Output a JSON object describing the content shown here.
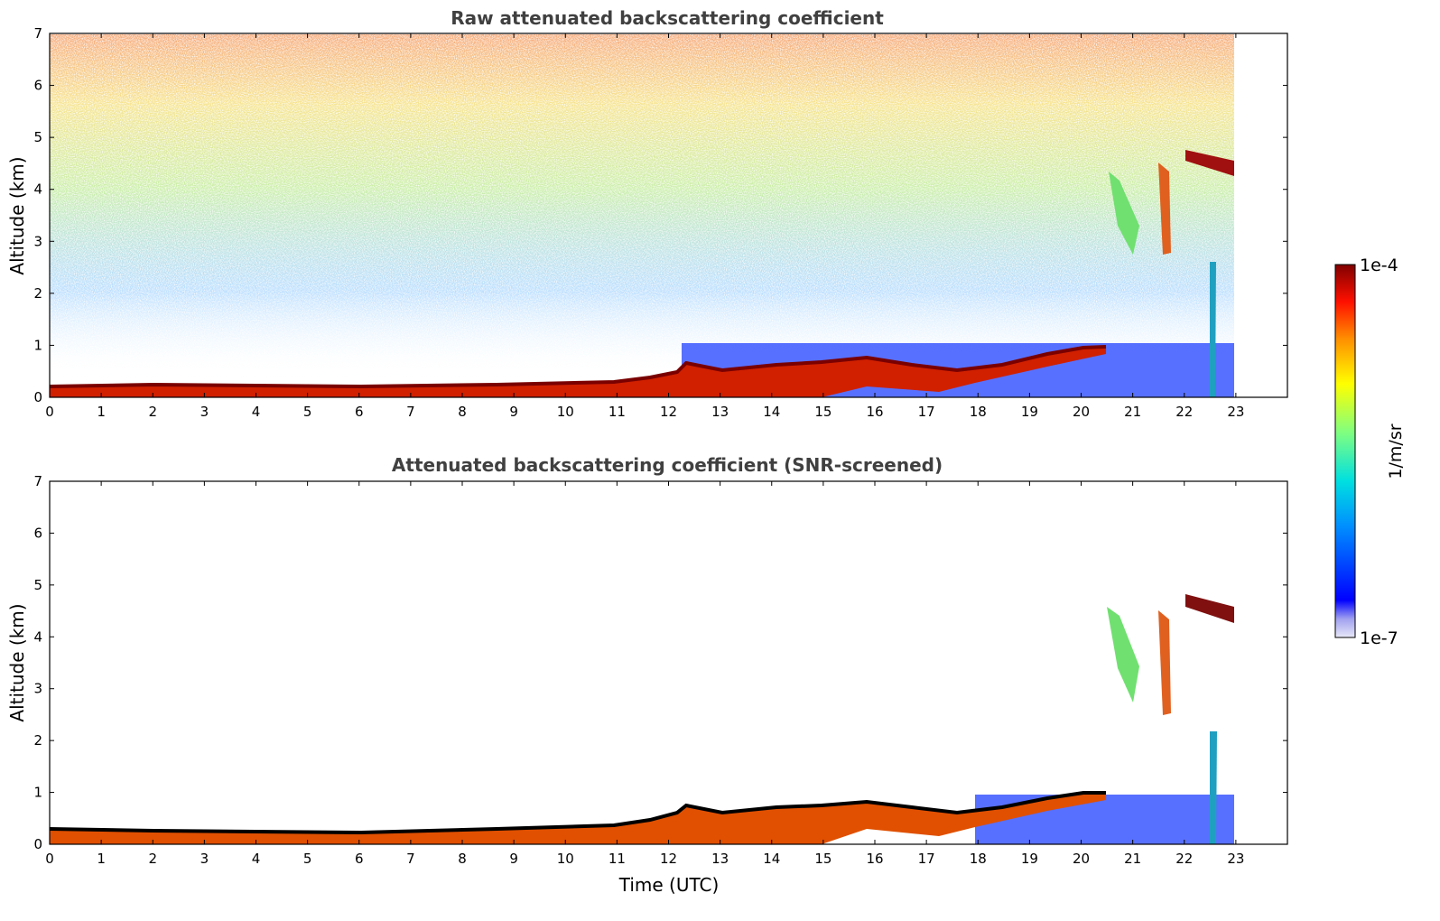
{
  "chart_data": [
    {
      "type": "heatmap",
      "title": "Raw attenuated backscattering coefficient",
      "xlabel": "",
      "ylabel": "Altitude (km)",
      "xlim": [
        0,
        24
      ],
      "ylim": [
        0,
        7
      ],
      "xticks": [
        "0",
        "1",
        "2",
        "3",
        "4",
        "5",
        "6",
        "7",
        "8",
        "9",
        "10",
        "11",
        "12",
        "13",
        "14",
        "15",
        "16",
        "17",
        "18",
        "19",
        "20",
        "21",
        "22",
        "23"
      ],
      "yticks": [
        "0",
        "1",
        "2",
        "3",
        "4",
        "5",
        "6",
        "7"
      ],
      "data_extent_hours": [
        0,
        23
      ],
      "colorbar": {
        "min": "1e-7",
        "max": "1e-4",
        "label": "1/m/sr",
        "scale": "log"
      },
      "features": [
        {
          "name": "boundary layer",
          "x": [
            0,
            2,
            4,
            6,
            8,
            10,
            11,
            12,
            12.3,
            13,
            14,
            15,
            16,
            17,
            17.5,
            18,
            19,
            20,
            20.5
          ],
          "y": [
            0.15,
            0.18,
            0.17,
            0.16,
            0.18,
            0.2,
            0.3,
            0.45,
            0.65,
            0.55,
            0.55,
            0.6,
            0.65,
            0.5,
            0.6,
            0.5,
            0.65,
            0.9,
            0.95
          ]
        },
        {
          "name": "upper cloud",
          "x": [
            21.0,
            21.8,
            22.0,
            22.6,
            23.0
          ],
          "y": [
            4.2,
            3.4,
            4.7,
            4.5,
            4.35
          ]
        }
      ]
    },
    {
      "type": "heatmap",
      "title": "Attenuated backscattering coefficient (SNR-screened)",
      "xlabel": "Time (UTC)",
      "ylabel": "Altitude (km)",
      "xlim": [
        0,
        24
      ],
      "ylim": [
        0,
        7
      ],
      "xticks": [
        "0",
        "1",
        "2",
        "3",
        "4",
        "5",
        "6",
        "7",
        "8",
        "9",
        "10",
        "11",
        "12",
        "13",
        "14",
        "15",
        "16",
        "17",
        "18",
        "19",
        "20",
        "21",
        "22",
        "23"
      ],
      "yticks": [
        "0",
        "1",
        "2",
        "3",
        "4",
        "5",
        "6",
        "7"
      ],
      "data_extent_hours": [
        0,
        23
      ],
      "colorbar": {
        "min": "1e-7",
        "max": "1e-4",
        "label": "1/m/sr",
        "scale": "log"
      }
    }
  ],
  "colorbar": {
    "top_label": "1e-4",
    "bottom_label": "1e-7",
    "axis_label": "1/m/sr",
    "colors": [
      "#e0e0f8",
      "#0000ff",
      "#00a0ff",
      "#00e0e0",
      "#80ff80",
      "#ffff00",
      "#ff8000",
      "#ff0000",
      "#800000"
    ]
  }
}
